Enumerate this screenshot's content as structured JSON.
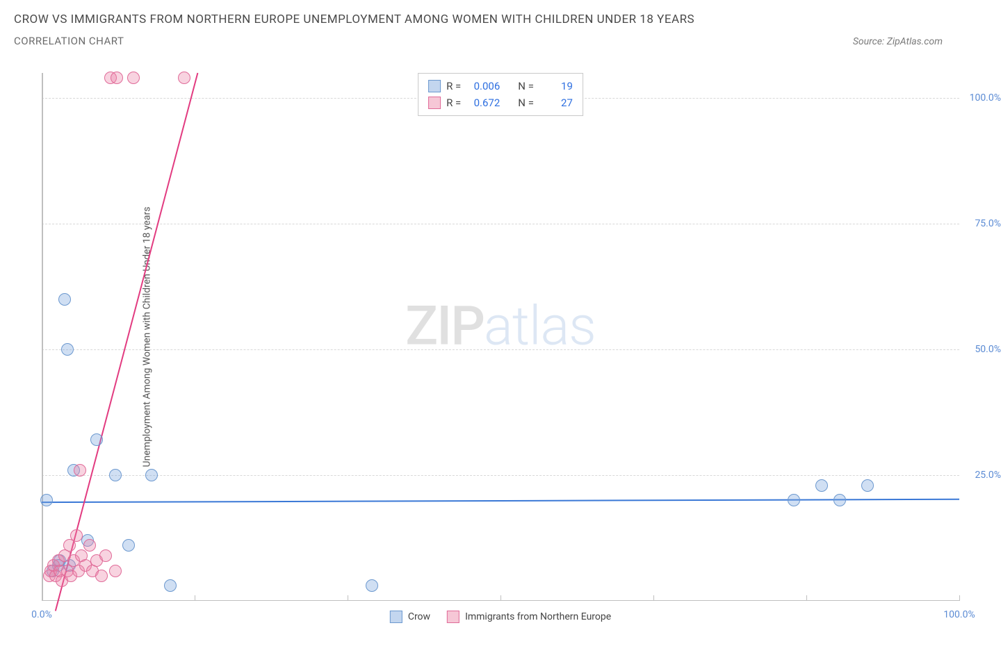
{
  "title": "CROW VS IMMIGRANTS FROM NORTHERN EUROPE UNEMPLOYMENT AMONG WOMEN WITH CHILDREN UNDER 18 YEARS",
  "subtitle": "CORRELATION CHART",
  "source": "Source: ZipAtlas.com",
  "watermark": {
    "part1": "ZIP",
    "part2": "atlas"
  },
  "chart": {
    "type": "scatter",
    "xlim": [
      0,
      100
    ],
    "ylim": [
      0,
      105
    ],
    "background_color": "#ffffff",
    "grid_color": "#d8d8d8",
    "axis_color": "#bfbfbf",
    "y_axis_label": "Unemployment Among Women with Children Under 18 years",
    "y_ticks": [
      {
        "v": 25,
        "label": "25.0%"
      },
      {
        "v": 50,
        "label": "50.0%"
      },
      {
        "v": 75,
        "label": "75.0%"
      },
      {
        "v": 100,
        "label": "100.0%"
      }
    ],
    "x_ticks": [
      {
        "v": 0,
        "label": "0.0%"
      },
      {
        "v": 16.67,
        "label": ""
      },
      {
        "v": 33.33,
        "label": ""
      },
      {
        "v": 50.0,
        "label": ""
      },
      {
        "v": 66.67,
        "label": ""
      },
      {
        "v": 83.33,
        "label": ""
      },
      {
        "v": 100.0,
        "label": "100.0%"
      }
    ],
    "series": [
      {
        "name": "Crow",
        "color_fill": "rgba(121,163,220,0.35)",
        "color_stroke": "#6b98cf",
        "marker_radius": 9,
        "trend": {
          "x1": 0,
          "y1": 19.6,
          "x2": 100,
          "y2": 20.2,
          "color": "#3a78d6",
          "width": 2
        },
        "stats": {
          "R": "0.006",
          "N": "19"
        },
        "points": [
          {
            "x": 0.5,
            "y": 20
          },
          {
            "x": 1.2,
            "y": 6
          },
          {
            "x": 1.8,
            "y": 7
          },
          {
            "x": 2.5,
            "y": 60
          },
          {
            "x": 2.8,
            "y": 50
          },
          {
            "x": 3.5,
            "y": 26
          },
          {
            "x": 5.0,
            "y": 12
          },
          {
            "x": 6.0,
            "y": 32
          },
          {
            "x": 8.0,
            "y": 25
          },
          {
            "x": 9.5,
            "y": 11
          },
          {
            "x": 12.0,
            "y": 25
          },
          {
            "x": 14.0,
            "y": 3
          },
          {
            "x": 36.0,
            "y": 3
          },
          {
            "x": 82.0,
            "y": 20
          },
          {
            "x": 85.0,
            "y": 23
          },
          {
            "x": 87.0,
            "y": 20
          },
          {
            "x": 90.0,
            "y": 23
          },
          {
            "x": 2.0,
            "y": 8
          },
          {
            "x": 3.0,
            "y": 7
          }
        ]
      },
      {
        "name": "Immigrants from Northern Europe",
        "color_fill": "rgba(235,130,165,0.35)",
        "color_stroke": "#e06a98",
        "marker_radius": 9,
        "trend": {
          "x1": 1.5,
          "y1": -2,
          "x2": 17,
          "y2": 105,
          "color": "#e23b80",
          "width": 2
        },
        "stats": {
          "R": "0.672",
          "N": "27"
        },
        "points": [
          {
            "x": 0.8,
            "y": 5
          },
          {
            "x": 1.0,
            "y": 6
          },
          {
            "x": 1.3,
            "y": 7
          },
          {
            "x": 1.5,
            "y": 5
          },
          {
            "x": 1.8,
            "y": 8
          },
          {
            "x": 2.0,
            "y": 6
          },
          {
            "x": 2.2,
            "y": 4
          },
          {
            "x": 2.5,
            "y": 9
          },
          {
            "x": 2.8,
            "y": 6
          },
          {
            "x": 3.0,
            "y": 11
          },
          {
            "x": 3.2,
            "y": 5
          },
          {
            "x": 3.5,
            "y": 8
          },
          {
            "x": 3.8,
            "y": 13
          },
          {
            "x": 4.0,
            "y": 6
          },
          {
            "x": 4.3,
            "y": 9
          },
          {
            "x": 4.8,
            "y": 7
          },
          {
            "x": 5.2,
            "y": 11
          },
          {
            "x": 5.5,
            "y": 6
          },
          {
            "x": 6.0,
            "y": 8
          },
          {
            "x": 6.5,
            "y": 5
          },
          {
            "x": 7.0,
            "y": 9
          },
          {
            "x": 8.0,
            "y": 6
          },
          {
            "x": 4.2,
            "y": 26
          },
          {
            "x": 7.5,
            "y": 104
          },
          {
            "x": 8.2,
            "y": 104
          },
          {
            "x": 10.0,
            "y": 104
          },
          {
            "x": 15.5,
            "y": 104
          }
        ]
      }
    ],
    "legend": [
      {
        "label": "Crow",
        "fill": "rgba(121,163,220,0.45)",
        "stroke": "#6b98cf"
      },
      {
        "label": "Immigrants from Northern Europe",
        "fill": "rgba(235,130,165,0.45)",
        "stroke": "#e06a98"
      }
    ],
    "stats_box_labels": {
      "R": "R =",
      "N": "N ="
    }
  }
}
